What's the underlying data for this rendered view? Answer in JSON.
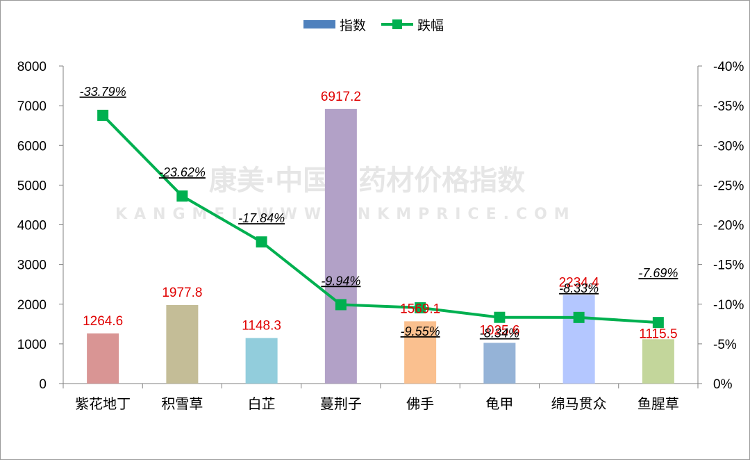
{
  "legend": {
    "bar_label": "指数",
    "line_label": "跌幅"
  },
  "watermark": {
    "line1": "康美·中国中药材价格指数",
    "line2": "KANGMEI WWW.CNKMPRICE.COM"
  },
  "colors": {
    "legend_bar": "#4f81bd",
    "line": "#00b050",
    "value_label": "#e00000"
  },
  "chart_data": {
    "type": "bar",
    "categories": [
      "紫花地丁",
      "积雪草",
      "白芷",
      "蔓荆子",
      "佛手",
      "龟甲",
      "绵马贯众",
      "鱼腥草"
    ],
    "series": [
      {
        "name": "指数",
        "type": "bar",
        "axis": "left",
        "values": [
          1264.6,
          1977.8,
          1148.3,
          6917.2,
          1569.1,
          1025.6,
          2234.4,
          1115.5
        ],
        "value_labels": [
          "1264.6",
          "1977.8",
          "1148.3",
          "6917.2",
          "1569.1",
          "1025.6",
          "2234.4",
          "1115.5"
        ],
        "colors": [
          "#d99594",
          "#c4bd97",
          "#92cddc",
          "#b2a1c7",
          "#fac08f",
          "#95b3d7",
          "#b4c7ff",
          "#c3d69b"
        ]
      },
      {
        "name": "跌幅",
        "type": "line",
        "axis": "right",
        "values": [
          -33.79,
          -23.62,
          -17.84,
          -9.94,
          -9.55,
          -8.34,
          -8.33,
          -7.69
        ],
        "value_labels": [
          "-33.79%",
          "-23.62%",
          "-17.84%",
          "-9.94%",
          "-9.55%",
          "-8.34%",
          "-8.33%",
          "-7.69%"
        ]
      }
    ],
    "y_left": {
      "min": 0,
      "max": 8000,
      "ticks": [
        "0",
        "1000",
        "2000",
        "3000",
        "4000",
        "5000",
        "6000",
        "7000",
        "8000"
      ]
    },
    "y_right": {
      "min": 0,
      "max": -40,
      "reversed": true,
      "ticks": [
        "0%",
        "-5%",
        "-10%",
        "-15%",
        "-20%",
        "-25%",
        "-30%",
        "-35%",
        "-40%"
      ]
    },
    "grid": false,
    "legend_position": "top"
  }
}
